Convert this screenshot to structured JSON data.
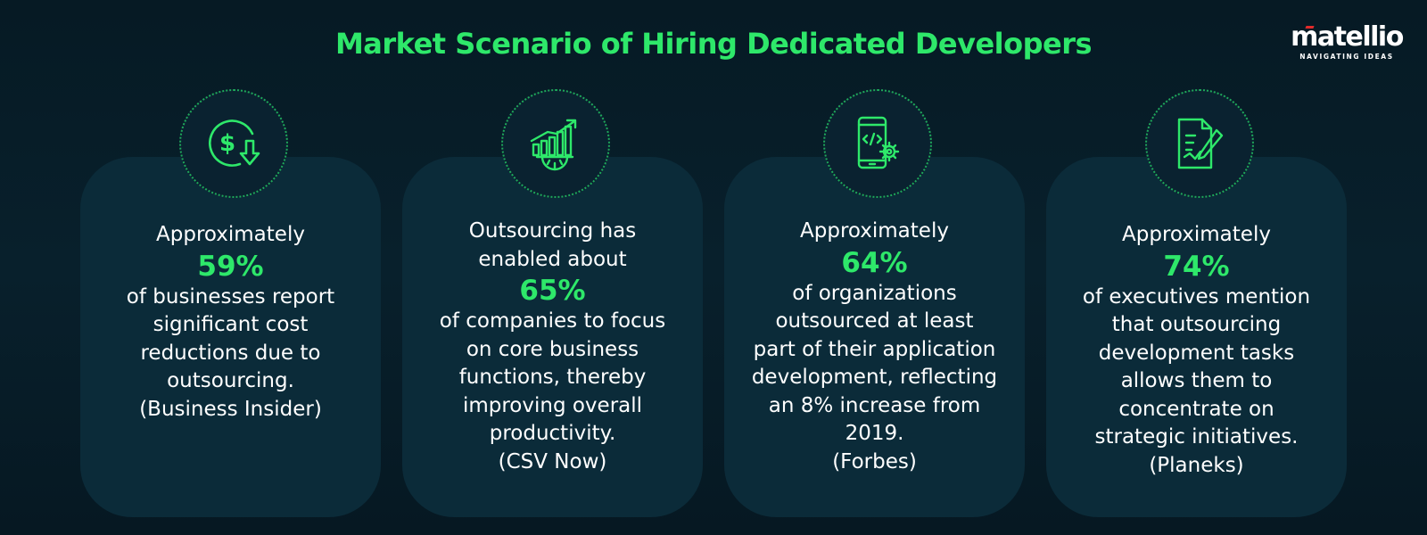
{
  "header": {
    "title": "Market Scenario of Hiring Dedicated Developers",
    "logo_text": "matellio",
    "logo_tagline": "NAVIGATING IDEAS"
  },
  "cards": [
    {
      "icon": "dollar-cost-down-icon",
      "intro": [
        "Approximately"
      ],
      "stat": "59%",
      "body": [
        "of businesses report",
        "significant cost",
        "reductions due to",
        "outsourcing."
      ],
      "source": "(Business Insider)"
    },
    {
      "icon": "growth-chart-gear-icon",
      "intro": [
        "Outsourcing has",
        "enabled about"
      ],
      "stat": "65%",
      "body": [
        "of companies to focus",
        "on core business",
        "functions, thereby",
        "improving overall",
        "productivity."
      ],
      "source": "(CSV Now)"
    },
    {
      "icon": "mobile-code-gear-icon",
      "intro": [
        "Approximately"
      ],
      "stat": "64%",
      "body": [
        "of organizations",
        "outsourced at least",
        "part of their application",
        "development, reflecting",
        "an 8% increase from",
        "2019."
      ],
      "source": "(Forbes)"
    },
    {
      "icon": "document-pen-icon",
      "intro": [
        "Approximately"
      ],
      "stat": "74%",
      "body": [
        "of executives mention",
        "that outsourcing",
        "development tasks",
        "allows them to",
        "concentrate on",
        "strategic initiatives."
      ],
      "source": "(Planeks)"
    }
  ],
  "colors": {
    "accent": "#2ee86a",
    "background": "#071c26",
    "card": "#0b2b39",
    "logo_accent": "#e02a2a"
  }
}
